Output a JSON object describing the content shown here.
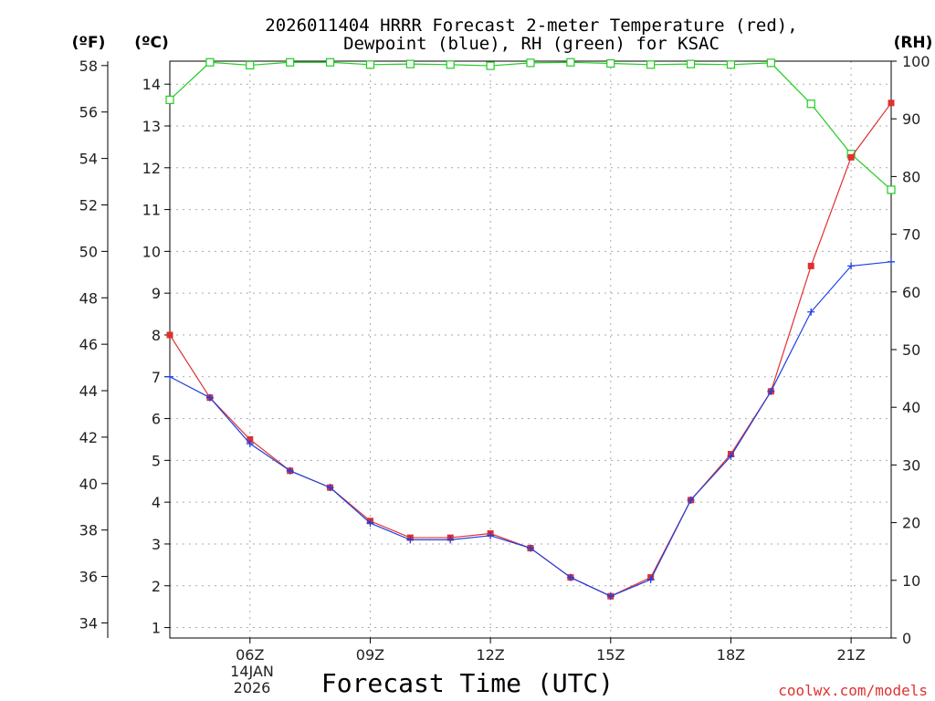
{
  "chart_data": {
    "type": "line",
    "title_line1": "2026011404 HRRR Forecast 2-meter Temperature (red),",
    "title_line2": "Dewpoint (blue), RH (green) for KSAC",
    "xlabel": "Forecast Time (UTC)",
    "units": {
      "fahrenheit": "(ºF)",
      "celsius": "(ºC)",
      "rh": "(RH)"
    },
    "date_label_line1": "14JAN",
    "date_label_line2": "2026",
    "credit": "coolwx.com/models",
    "x_hours": [
      4,
      5,
      6,
      7,
      8,
      9,
      10,
      11,
      12,
      13,
      14,
      15,
      16,
      17,
      18,
      19,
      20,
      21,
      22
    ],
    "x_range": [
      4,
      22
    ],
    "x_ticks": [
      {
        "hour": 6,
        "label": "06Z"
      },
      {
        "hour": 9,
        "label": "09Z"
      },
      {
        "hour": 12,
        "label": "12Z"
      },
      {
        "hour": 15,
        "label": "15Z"
      },
      {
        "hour": 18,
        "label": "18Z"
      },
      {
        "hour": 21,
        "label": "21Z"
      }
    ],
    "celsius_range": [
      0.75,
      14.55
    ],
    "celsius_ticks": [
      "1",
      "2",
      "3",
      "4",
      "5",
      "6",
      "7",
      "8",
      "9",
      "10",
      "11",
      "12",
      "13",
      "14"
    ],
    "fahrenheit_ticks": [
      "34",
      "36",
      "38",
      "40",
      "42",
      "44",
      "46",
      "48",
      "50",
      "52",
      "54",
      "56",
      "58"
    ],
    "rh_range": [
      0,
      100
    ],
    "rh_ticks": [
      "0",
      "10",
      "20",
      "30",
      "40",
      "50",
      "60",
      "70",
      "80",
      "90",
      "100"
    ],
    "colors": {
      "temperature": "#e03030",
      "dewpoint": "#2040e0",
      "rh": "#22cc22",
      "grid": "#aaaaaa",
      "credit": "#e03030"
    },
    "series": [
      {
        "name": "Temperature",
        "unit": "C",
        "values": [
          8.0,
          6.5,
          5.5,
          4.75,
          4.35,
          3.55,
          3.15,
          3.15,
          3.25,
          2.9,
          2.2,
          1.75,
          2.2,
          4.05,
          5.15,
          6.65,
          9.65,
          12.25,
          13.55
        ]
      },
      {
        "name": "Dewpoint",
        "unit": "C",
        "values": [
          7.0,
          6.5,
          5.4,
          4.75,
          4.35,
          3.5,
          3.1,
          3.1,
          3.2,
          2.9,
          2.2,
          1.75,
          2.15,
          4.05,
          5.1,
          6.65,
          8.55,
          9.65,
          9.75
        ]
      },
      {
        "name": "RH",
        "unit": "%",
        "values": [
          93.3,
          99.8,
          99.3,
          99.8,
          99.8,
          99.4,
          99.5,
          99.4,
          99.2,
          99.7,
          99.8,
          99.6,
          99.4,
          99.5,
          99.4,
          99.7,
          92.6,
          83.9,
          77.7
        ]
      }
    ]
  }
}
